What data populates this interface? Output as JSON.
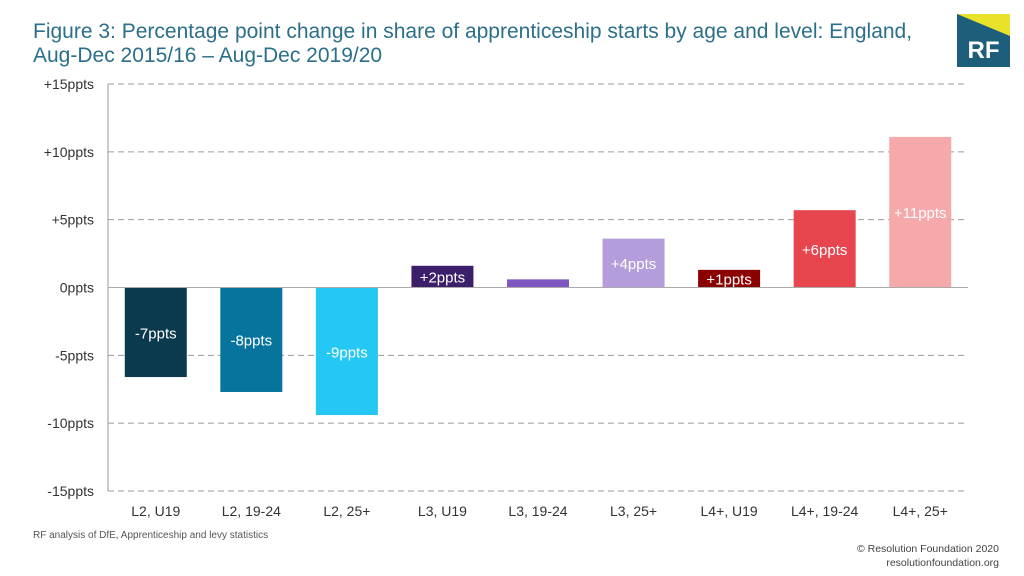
{
  "title_lines": [
    "Figure 3: Percentage point change in share of apprenticeship starts by age and level: England,",
    "Aug-Dec 2015/16 – Aug-Dec 2019/20"
  ],
  "logo": {
    "text": "RF",
    "colors": {
      "box": "#1d5f7a",
      "accent": "#e9e12a",
      "text": "#ffffff"
    }
  },
  "source": "RF analysis of DfE, Apprenticeship and levy statistics",
  "footer": {
    "copyright": "© Resolution Foundation 2020",
    "website": "resolutionfoundation.org"
  },
  "chart_data": {
    "type": "bar",
    "categories": [
      "L2, U19",
      "L2, 19-24",
      "L2, 25+",
      "L3, U19",
      "L3, 19-24",
      "L3, 25+",
      "L4+, U19",
      "L4+, 19-24",
      "L4+, 25+"
    ],
    "values": [
      -6.6,
      -7.7,
      -9.4,
      1.6,
      0.6,
      3.6,
      1.3,
      5.7,
      11.1
    ],
    "data_labels": [
      "-7ppts",
      "-8ppts",
      "-9ppts",
      "+2ppts",
      "",
      "+4ppts",
      "+1ppts",
      "+6ppts",
      "+11ppts"
    ],
    "colors": [
      "#0b3a4e",
      "#06749c",
      "#25c7f4",
      "#3b1f6b",
      "#7e57c2",
      "#b39ddb",
      "#8b0000",
      "#e8464f",
      "#f5a9ab"
    ],
    "label_colors": [
      "#ffffff",
      "#ffffff",
      "#ffffff",
      "#ffffff",
      "#ffffff",
      "#ffffff",
      "#ffffff",
      "#ffffff",
      "#ffffff"
    ],
    "y_ticks": [
      15,
      10,
      5,
      0,
      -5,
      -10,
      -15
    ],
    "y_tick_labels": [
      "+15ppts",
      "+10ppts",
      "+5ppts",
      "0ppts",
      "-5ppts",
      "-10ppts",
      "-15ppts"
    ],
    "ylim": [
      -15,
      15
    ],
    "grid": "dashed horizontal",
    "xlabel": "",
    "ylabel": ""
  }
}
